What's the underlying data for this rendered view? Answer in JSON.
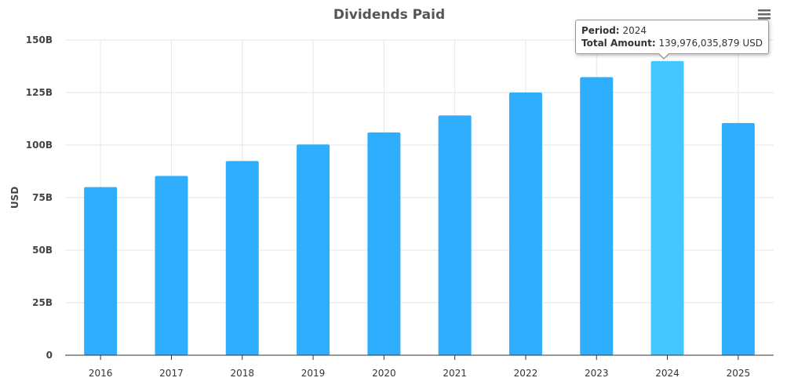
{
  "chart_data": {
    "type": "bar",
    "title": "Dividends Paid",
    "xlabel": "",
    "ylabel": "USD",
    "categories": [
      "2016",
      "2017",
      "2018",
      "2019",
      "2020",
      "2021",
      "2022",
      "2023",
      "2024",
      "2025"
    ],
    "values": [
      80.0,
      85.3,
      92.4,
      100.3,
      106.0,
      114.1,
      125.0,
      132.3,
      139.976035879,
      110.5
    ],
    "value_unit": "billions USD",
    "ylim": [
      0,
      150
    ],
    "yticks": [
      0,
      25,
      50,
      75,
      100,
      125,
      150
    ],
    "ytick_labels": [
      "0",
      "25B",
      "50B",
      "75B",
      "100B",
      "125B",
      "150B"
    ],
    "grid": true,
    "legend": "none",
    "highlighted_category": "2024"
  },
  "colors": {
    "bar": "#2eaefc",
    "bar_highlight": "#45c6ff",
    "title": "#555555"
  },
  "tooltip": {
    "period_label": "Period:",
    "period_value": "2024",
    "amount_label": "Total Amount:",
    "amount_value": "139,976,035,879 USD"
  },
  "menu": {
    "icon": "hamburger-menu-icon"
  }
}
